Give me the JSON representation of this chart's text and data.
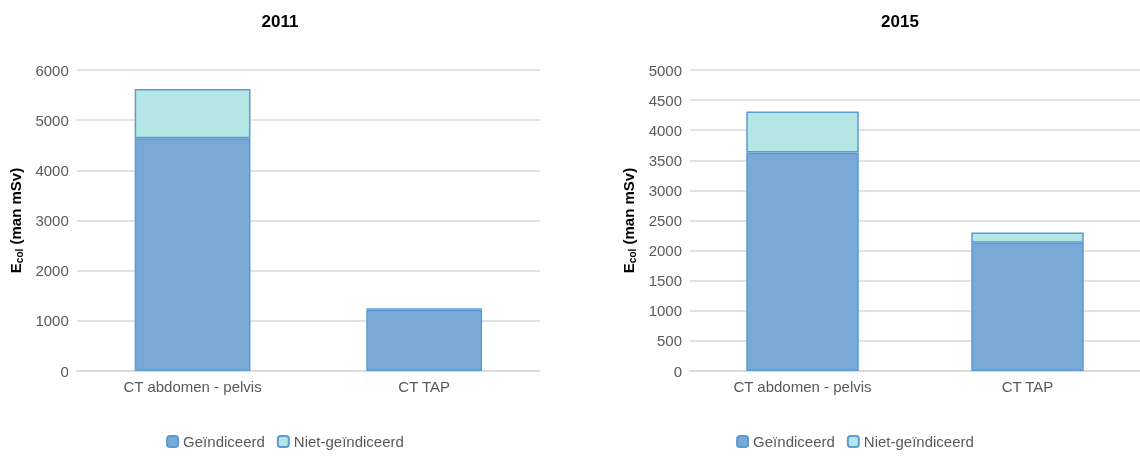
{
  "chart_data": [
    {
      "type": "bar",
      "title": "2011",
      "ylabel": "E$_{col}$ (man mSv)",
      "categories": [
        "CT abdomen - pelvis",
        "CT TAP"
      ],
      "stacked": true,
      "ylim": [
        0,
        6000
      ],
      "yticks": [
        0,
        1000,
        2000,
        3000,
        4000,
        5000,
        6000
      ],
      "grid": "y",
      "legend": "bottom",
      "series": [
        {
          "name": "Geïndiceerd",
          "color": "#7ba9d6",
          "values": [
            4640,
            1220
          ]
        },
        {
          "name": "Niet-geïndiceerd",
          "color": "#b5e6e6",
          "values": [
            980,
            30
          ]
        }
      ]
    },
    {
      "type": "bar",
      "title": "2015",
      "ylabel": "E$_{col}$ (man mSv)",
      "categories": [
        "CT abdomen - pelvis",
        "CT TAP"
      ],
      "stacked": true,
      "ylim": [
        0,
        5000
      ],
      "yticks": [
        0,
        500,
        1000,
        1500,
        2000,
        2500,
        3000,
        3500,
        4000,
        4500,
        5000
      ],
      "grid": "y",
      "legend": "bottom",
      "series": [
        {
          "name": "Geïndiceerd",
          "color": "#7ba9d6",
          "values": [
            3630,
            2130
          ]
        },
        {
          "name": "Niet-geïndiceerd",
          "color": "#b5e6e6",
          "values": [
            680,
            170
          ]
        }
      ]
    }
  ]
}
